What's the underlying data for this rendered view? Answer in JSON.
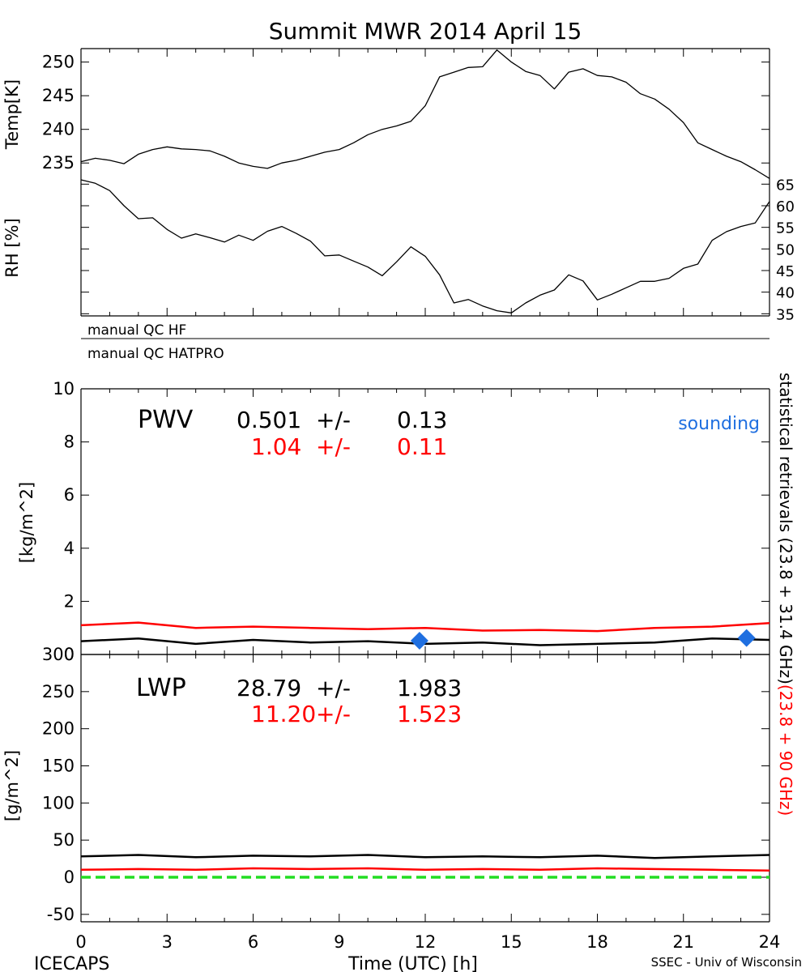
{
  "title": "Summit MWR 2014 April 15",
  "footer": {
    "left": "ICECAPS",
    "center": "Time (UTC) [h]",
    "right": "SSEC - Univ of Wisconsin"
  },
  "qc_labels": [
    "manual QC HF",
    "manual QC HATPRO"
  ],
  "side_label": {
    "black_part": "statistical retrievals (23.8 + 31.4 GHz)",
    "red_part": "(23.8 + 90 GHz)"
  },
  "colors": {
    "black": "#000000",
    "red": "#ff0000",
    "blue": "#1f6fe0",
    "green": "#22dd22"
  },
  "chart_data": [
    {
      "id": "temp",
      "type": "line",
      "ylabel": "Temp[K]",
      "ylim": [
        232.5,
        252
      ],
      "yticks": [
        235,
        240,
        245,
        250
      ],
      "xlim": [
        0,
        24
      ],
      "series": [
        {
          "color": "#000000",
          "x": [
            0,
            0.5,
            1,
            1.5,
            2,
            2.5,
            3,
            3.5,
            4,
            4.5,
            5,
            5.5,
            6,
            6.5,
            7,
            7.5,
            8,
            8.5,
            9,
            9.5,
            10,
            10.5,
            11,
            11.5,
            12,
            12.5,
            13,
            13.5,
            14,
            14.5,
            15,
            15.5,
            16,
            16.5,
            17,
            17.5,
            18,
            18.5,
            19,
            19.5,
            20,
            20.5,
            21,
            21.5,
            22,
            22.5,
            23,
            23.5,
            24
          ],
          "y": [
            235.2,
            235.7,
            235.4,
            234.9,
            236.3,
            237.0,
            237.4,
            237.1,
            237.0,
            236.8,
            236.0,
            235.0,
            234.5,
            234.2,
            235.0,
            235.4,
            236.0,
            236.6,
            237.0,
            238.0,
            239.2,
            240.0,
            240.5,
            241.2,
            243.5,
            247.8,
            248.5,
            249.2,
            249.3,
            251.8,
            250.0,
            248.6,
            248.0,
            246.0,
            248.5,
            249.0,
            248.0,
            247.8,
            247.0,
            245.3,
            244.5,
            243.0,
            241.0,
            238.0,
            237.0,
            236.0,
            235.2,
            234.0,
            232.7
          ]
        }
      ]
    },
    {
      "id": "rh",
      "type": "line",
      "ylabel": "RH [%]",
      "ylim": [
        34.5,
        66
      ],
      "yticks": [
        35,
        40,
        45,
        50,
        55,
        60,
        65
      ],
      "xlim": [
        0,
        24
      ],
      "series": [
        {
          "color": "#000000",
          "x": [
            0,
            0.5,
            1,
            1.5,
            2,
            2.5,
            3,
            3.5,
            4,
            4.5,
            5,
            5.5,
            6,
            6.5,
            7,
            7.5,
            8,
            8.5,
            9,
            9.5,
            10,
            10.5,
            11,
            11.5,
            12,
            12.5,
            13,
            13.5,
            14,
            14.5,
            15,
            15.5,
            16,
            16.5,
            17,
            17.5,
            18,
            18.5,
            19,
            19.5,
            20,
            20.5,
            21,
            21.5,
            22,
            22.5,
            23,
            23.5,
            24
          ],
          "y": [
            66,
            65.2,
            63.5,
            60,
            57,
            57.2,
            54.5,
            52.5,
            53.5,
            52.6,
            51.6,
            53.2,
            52,
            54.1,
            55.2,
            53.6,
            51.8,
            48.4,
            48.6,
            47.2,
            45.8,
            43.8,
            47,
            50.5,
            48.3,
            44,
            37.5,
            38.3,
            36.8,
            35.7,
            35.2,
            37.5,
            39.3,
            40.5,
            44,
            42.6,
            38.2,
            39.5,
            41,
            42.5,
            42.5,
            43.2,
            45.5,
            46.5,
            52,
            54,
            55.2,
            56,
            61
          ]
        }
      ]
    },
    {
      "id": "pwv",
      "type": "line",
      "label": "PWV",
      "ylabel": "[kg/m^2]",
      "ylim": [
        0,
        10
      ],
      "yticks": [
        0,
        2,
        4,
        6,
        8,
        10
      ],
      "xlim": [
        0,
        24
      ],
      "stats": [
        {
          "mean": "0.501",
          "pm": "+/-",
          "sd": "0.13",
          "color": "#000000"
        },
        {
          "mean": "1.04",
          "pm": "+/-",
          "sd": "0.11",
          "color": "#ff0000"
        }
      ],
      "legend": {
        "label": "sounding",
        "color": "#1f6fe0"
      },
      "series": [
        {
          "color": "#ff0000",
          "x": [
            0,
            2,
            4,
            6,
            8,
            10,
            12,
            14,
            16,
            18,
            20,
            22,
            24
          ],
          "y": [
            1.1,
            1.2,
            1.0,
            1.05,
            1.0,
            0.95,
            1.0,
            0.9,
            0.92,
            0.88,
            1.0,
            1.05,
            1.18
          ]
        },
        {
          "color": "#000000",
          "x": [
            0,
            2,
            4,
            6,
            8,
            10,
            12,
            14,
            16,
            18,
            20,
            22,
            24
          ],
          "y": [
            0.5,
            0.6,
            0.4,
            0.55,
            0.45,
            0.5,
            0.4,
            0.45,
            0.35,
            0.4,
            0.45,
            0.6,
            0.55
          ]
        }
      ],
      "points": [
        {
          "x": 11.8,
          "y": 0.52,
          "color": "#1f6fe0"
        },
        {
          "x": 23.2,
          "y": 0.62,
          "color": "#1f6fe0"
        }
      ]
    },
    {
      "id": "lwp",
      "type": "line",
      "label": "LWP",
      "ylabel": "[g/m^2]",
      "ylim": [
        -60,
        300
      ],
      "yticks": [
        -50,
        0,
        50,
        100,
        150,
        200,
        250,
        300
      ],
      "xlim": [
        0,
        24
      ],
      "xticks": [
        0,
        3,
        6,
        9,
        12,
        15,
        18,
        21,
        24
      ],
      "stats": [
        {
          "mean": "28.79",
          "pm": "+/-",
          "sd": "1.983",
          "color": "#000000"
        },
        {
          "mean": "11.20",
          "pm": "+/-",
          "sd": "1.523",
          "color": "#ff0000"
        }
      ],
      "series": [
        {
          "color": "#000000",
          "x": [
            0,
            2,
            4,
            6,
            8,
            10,
            12,
            14,
            16,
            18,
            20,
            22,
            24
          ],
          "y": [
            28,
            30,
            27,
            29,
            28,
            30,
            27,
            28,
            27,
            29,
            26,
            28,
            30
          ]
        },
        {
          "color": "#ff0000",
          "x": [
            0,
            2,
            4,
            6,
            8,
            10,
            12,
            14,
            16,
            18,
            20,
            22,
            24
          ],
          "y": [
            10,
            11,
            10,
            12,
            11,
            12,
            10,
            11,
            10,
            12,
            11,
            10,
            9
          ]
        },
        {
          "color": "#22dd22",
          "x": [
            0,
            24
          ],
          "y": [
            0,
            0
          ],
          "dashed": true
        }
      ]
    }
  ]
}
